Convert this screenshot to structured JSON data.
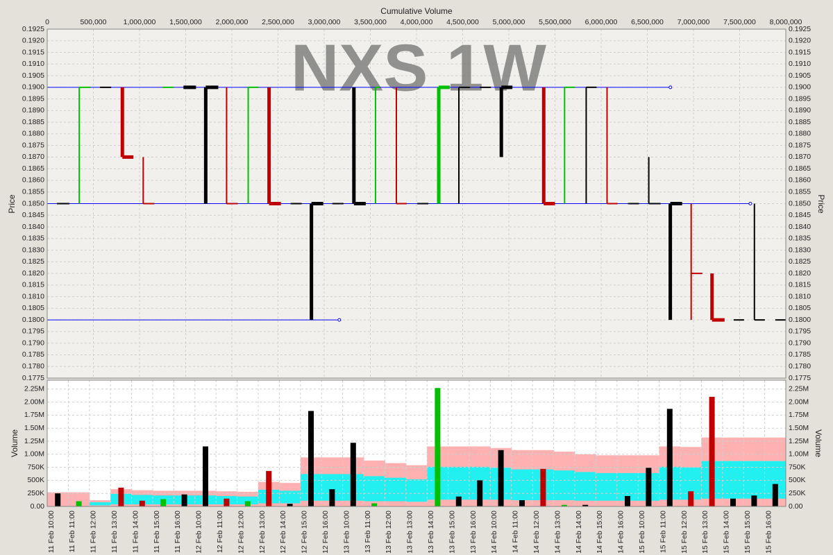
{
  "chart_data": [
    {
      "type": "step",
      "watermark": "NXS 1W",
      "x_label": "Cumulative Volume",
      "y_label": "Price",
      "xlim": [
        0,
        8000000
      ],
      "xticks": [
        0,
        {
          "value": 500000,
          "label": "500,000"
        },
        {
          "value": 1000000,
          "label": "1,000,000"
        },
        {
          "value": 1500000,
          "label": "1,500,000"
        },
        {
          "value": 2000000,
          "label": "2,000,000"
        },
        {
          "value": 2500000,
          "label": "2,500,000"
        },
        {
          "value": 3000000,
          "label": "3,000,000"
        },
        {
          "value": 3500000,
          "label": "3,500,000"
        },
        {
          "value": 4000000,
          "label": "4,000,000"
        },
        {
          "value": 4500000,
          "label": "4,500,000"
        },
        {
          "value": 5000000,
          "label": "5,000,000"
        },
        {
          "value": 5500000,
          "label": "5,500,000"
        },
        {
          "value": 6000000,
          "label": "6,000,000"
        },
        {
          "value": 6500000,
          "label": "6,500,000"
        },
        {
          "value": 7000000,
          "label": "7,000,000"
        },
        {
          "value": 7500000,
          "label": "7,500,000"
        },
        {
          "value": 8000000,
          "label": "8,000,000"
        }
      ],
      "ylim": [
        0.1775,
        0.1925
      ],
      "yticks": [
        0.1775,
        {
          "value": 0.178,
          "label": "0.1780"
        },
        0.1785,
        {
          "value": 0.179,
          "label": "0.1790"
        },
        0.1795,
        {
          "value": 0.18,
          "label": "0.1800"
        },
        0.1805,
        {
          "value": 0.181,
          "label": "0.1810"
        },
        0.1815,
        {
          "value": 0.182,
          "label": "0.1820"
        },
        0.1825,
        {
          "value": 0.183,
          "label": "0.1830"
        },
        0.1835,
        {
          "value": 0.184,
          "label": "0.1840"
        },
        0.1845,
        {
          "value": 0.185,
          "label": "0.1850"
        },
        0.1855,
        {
          "value": 0.186,
          "label": "0.1860"
        },
        0.1865,
        {
          "value": 0.187,
          "label": "0.1870"
        },
        0.1875,
        {
          "value": 0.188,
          "label": "0.1880"
        },
        0.1885,
        {
          "value": 0.189,
          "label": "0.1890"
        },
        0.1895,
        {
          "value": 0.19,
          "label": "0.1900"
        },
        0.1905,
        {
          "value": 0.191,
          "label": "0.1910"
        },
        0.1915,
        {
          "value": 0.192,
          "label": "0.1920"
        },
        0.1925
      ],
      "grid": true,
      "levels": [
        {
          "price": 0.19,
          "end": 6750000,
          "color": "#0000ff"
        },
        {
          "price": 0.185,
          "end": 7616000,
          "color": "#0000ff"
        },
        {
          "price": 0.18,
          "end": 3164000,
          "color": "#0000ff"
        }
      ],
      "steps": [
        {
          "x": 105000,
          "x2": 240000,
          "price": 0.185,
          "color": "#000000"
        },
        {
          "x": 347000,
          "x2": 467000,
          "price": 0.19,
          "low": 0.185,
          "high": 0.19,
          "color": "#00c000"
        },
        {
          "x": 572000,
          "x2": 693000,
          "price": 0.19,
          "color": "#000000"
        },
        {
          "x": 814000,
          "x2": 934000,
          "price": 0.187,
          "low": 0.187,
          "high": 0.19,
          "color": "#c00000",
          "thick": true
        },
        {
          "x": 1040000,
          "x2": 1160000,
          "price": 0.185,
          "low": 0.185,
          "high": 0.187,
          "color": "#c00000"
        },
        {
          "x": 1250000,
          "x2": 1371000,
          "price": 0.19,
          "color": "#00c000"
        },
        {
          "x": 1476000,
          "x2": 1612000,
          "price": 0.19,
          "color": "#000000",
          "thick": true
        },
        {
          "x": 1717000,
          "x2": 1853000,
          "price": 0.19,
          "low": 0.185,
          "high": 0.19,
          "color": "#000000",
          "thick": true
        },
        {
          "x": 1943000,
          "x2": 2064000,
          "price": 0.185,
          "low": 0.185,
          "high": 0.19,
          "color": "#c00000"
        },
        {
          "x": 2177000,
          "x2": 2290000,
          "price": 0.19,
          "low": 0.185,
          "high": 0.19,
          "color": "#00c000"
        },
        {
          "x": 2403000,
          "x2": 2531000,
          "price": 0.185,
          "low": 0.185,
          "high": 0.19,
          "color": "#c00000",
          "thick": true
        },
        {
          "x": 2637000,
          "x2": 2757000,
          "price": 0.185,
          "color": "#000000"
        },
        {
          "x": 2862000,
          "x2": 2990000,
          "price": 0.185,
          "low": 0.18,
          "high": 0.185,
          "color": "#000000",
          "thick": true
        },
        {
          "x": 3088000,
          "x2": 3209000,
          "price": 0.185,
          "color": "#000000"
        },
        {
          "x": 3322000,
          "x2": 3450000,
          "price": 0.185,
          "low": 0.185,
          "high": 0.19,
          "color": "#000000",
          "thick": true
        },
        {
          "x": 3556000,
          "x2": 3600000,
          "price": 0.19,
          "low": 0.185,
          "high": 0.19,
          "color": "#00c000"
        },
        {
          "x": 3782000,
          "x2": 3895000,
          "price": 0.185,
          "low": 0.185,
          "high": 0.19,
          "color": "#c00000"
        },
        {
          "x": 4008000,
          "x2": 4128000,
          "price": 0.185,
          "color": "#000000"
        },
        {
          "x": 4241000,
          "x2": 4361000,
          "price": 0.19,
          "low": 0.185,
          "high": 0.19,
          "color": "#00c000",
          "thick": true
        },
        {
          "x": 4459000,
          "x2": 4580000,
          "price": 0.19,
          "low": 0.185,
          "high": 0.19,
          "color": "#000000"
        },
        {
          "x": 4685000,
          "x2": 4806000,
          "price": 0.19,
          "color": "#000000"
        },
        {
          "x": 4919000,
          "x2": 5039000,
          "price": 0.19,
          "low": 0.187,
          "high": 0.19,
          "color": "#000000",
          "thick": true
        },
        {
          "x": 5378000,
          "x2": 5499000,
          "price": 0.185,
          "low": 0.185,
          "high": 0.19,
          "color": "#c00000",
          "thick": true
        },
        {
          "x": 5604000,
          "x2": 5717000,
          "price": 0.19,
          "low": 0.185,
          "high": 0.19,
          "color": "#00c000"
        },
        {
          "x": 5838000,
          "x2": 5951000,
          "price": 0.19,
          "low": 0.185,
          "high": 0.19,
          "color": "#000000"
        },
        {
          "x": 6064000,
          "x2": 6177000,
          "price": 0.185,
          "low": 0.185,
          "high": 0.19,
          "color": "#c00000"
        },
        {
          "x": 6290000,
          "x2": 6410000,
          "price": 0.185,
          "color": "#000000"
        },
        {
          "x": 6516000,
          "x2": 6644000,
          "price": 0.185,
          "low": 0.185,
          "high": 0.187,
          "color": "#000000"
        },
        {
          "x": 6749000,
          "x2": 6877000,
          "price": 0.185,
          "low": 0.18,
          "high": 0.185,
          "color": "#000000",
          "thick": true
        },
        {
          "x": 6975000,
          "x2": 7096000,
          "price": 0.182,
          "low": 0.18,
          "high": 0.185,
          "color": "#c00000"
        },
        {
          "x": 7201000,
          "x2": 7337000,
          "price": 0.18,
          "low": 0.18,
          "high": 0.182,
          "color": "#c00000",
          "thick": true
        },
        {
          "x": 7435000,
          "x2": 7548000,
          "price": 0.18,
          "color": "#000000"
        },
        {
          "x": 7660000,
          "x2": 7773000,
          "price": 0.18,
          "low": 0.18,
          "high": 0.185,
          "color": "#000000"
        },
        {
          "x": 7886000,
          "x2": 8000000,
          "price": 0.18,
          "color": "#000000"
        }
      ]
    },
    {
      "type": "bar",
      "y_label": "Volume",
      "categories": [
        "11 Feb 10:00",
        "11 Feb 11:00",
        "11 Feb 12:00",
        "11 Feb 13:00",
        "11 Feb 14:00",
        "11 Feb 15:00",
        "11 Feb 16:00",
        "12 Feb 10:00",
        "12 Feb 11:00",
        "12 Feb 12:00",
        "12 Feb 13:00",
        "12 Feb 14:00",
        "12 Feb 15:00",
        "12 Feb 16:00",
        "13 Feb 10:00",
        "13 Feb 11:00",
        "13 Feb 12:00",
        "13 Feb 13:00",
        "13 Feb 14:00",
        "13 Feb 15:00",
        "13 Feb 16:00",
        "14 Feb 10:00",
        "14 Feb 11:00",
        "14 Feb 12:00",
        "14 Feb 13:00",
        "14 Feb 14:00",
        "14 Feb 15:00",
        "14 Feb 16:00",
        "15 Feb 10:00",
        "15 Feb 11:00",
        "15 Feb 12:00",
        "15 Feb 13:00",
        "15 Feb 14:00",
        "15 Feb 15:00",
        "15 Feb 16:00"
      ],
      "values": [
        250000,
        100000,
        0,
        360000,
        110000,
        140000,
        230000,
        1150000,
        150000,
        100000,
        680000,
        50000,
        1830000,
        330000,
        1220000,
        60000,
        0,
        0,
        2270000,
        190000,
        500000,
        1080000,
        120000,
        720000,
        30000,
        30000,
        0,
        200000,
        740000,
        1870000,
        290000,
        2100000,
        150000,
        210000,
        430000
      ],
      "colors": [
        "#000000",
        "#00c000",
        "#000000",
        "#c00000",
        "#c00000",
        "#00c000",
        "#000000",
        "#000000",
        "#c00000",
        "#00c000",
        "#c00000",
        "#000000",
        "#000000",
        "#000000",
        "#000000",
        "#00c000",
        "#000000",
        "#000000",
        "#00c000",
        "#000000",
        "#000000",
        "#000000",
        "#000000",
        "#c00000",
        "#00c000",
        "#000000",
        "#000000",
        "#000000",
        "#000000",
        "#000000",
        "#c00000",
        "#c00000",
        "#000000",
        "#000000",
        "#000000"
      ],
      "ylim": [
        0,
        2420000
      ],
      "yticks": [
        {
          "value": 0,
          "label": "0.00"
        },
        {
          "value": 250000,
          "label": "250K"
        },
        {
          "value": 500000,
          "label": "500K"
        },
        {
          "value": 750000,
          "label": "750K"
        },
        {
          "value": 1000000,
          "label": "1.00M"
        },
        {
          "value": 1250000,
          "label": "1.25M"
        },
        {
          "value": 1500000,
          "label": "1.50M"
        },
        {
          "value": 1750000,
          "label": "1.75M"
        },
        {
          "value": 2000000,
          "label": "2.00M"
        },
        {
          "value": 2250000,
          "label": "2.25M"
        }
      ],
      "grid": true,
      "envelope": {
        "upper": [
          270000,
          270000,
          120000,
          330000,
          310000,
          300000,
          300000,
          300000,
          290000,
          280000,
          470000,
          450000,
          940000,
          940000,
          940000,
          880000,
          830000,
          790000,
          1150000,
          1150000,
          1150000,
          1120000,
          1080000,
          1080000,
          1050000,
          1000000,
          980000,
          980000,
          980000,
          1150000,
          1140000,
          1320000,
          1320000,
          1320000,
          1320000
        ],
        "inner_low": [
          0,
          0,
          20000,
          40000,
          40000,
          40000,
          40000,
          40000,
          40000,
          40000,
          60000,
          60000,
          110000,
          110000,
          110000,
          100000,
          100000,
          90000,
          130000,
          130000,
          130000,
          130000,
          120000,
          120000,
          120000,
          110000,
          110000,
          110000,
          110000,
          130000,
          130000,
          150000,
          150000,
          150000,
          150000
        ],
        "inner_high": [
          0,
          0,
          80000,
          240000,
          220000,
          210000,
          210000,
          210000,
          200000,
          190000,
          320000,
          300000,
          620000,
          620000,
          620000,
          580000,
          550000,
          520000,
          760000,
          760000,
          760000,
          740000,
          710000,
          710000,
          690000,
          660000,
          640000,
          640000,
          640000,
          760000,
          750000,
          870000,
          870000,
          870000,
          870000
        ],
        "upper_color": "#ffb0b0",
        "inner_color": "#22f0f0"
      }
    }
  ]
}
